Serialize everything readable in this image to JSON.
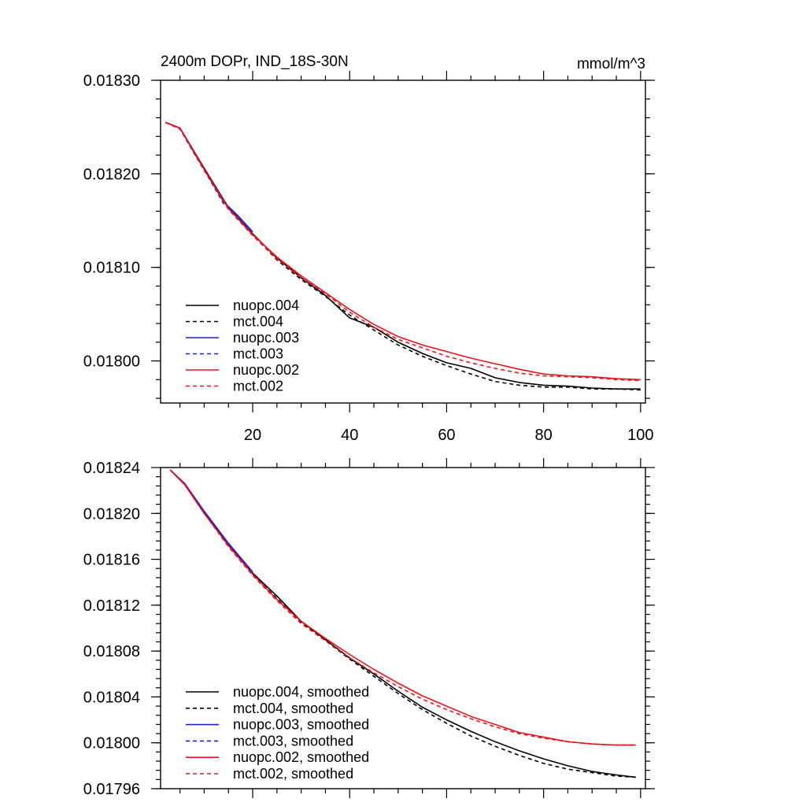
{
  "chart_data": [
    {
      "type": "line",
      "title": "2400m DOPr, IND_18S-30N",
      "units": "mmol/m^3",
      "xlim": [
        1,
        101
      ],
      "ylim": [
        0.017955,
        0.0183
      ],
      "x_ticks": [
        20,
        40,
        60,
        80,
        100
      ],
      "y_ticks": [
        0.018,
        0.0181,
        0.0182,
        0.0183
      ],
      "y_tick_labels": [
        "0.01800",
        "0.01810",
        "0.01820",
        "0.01830"
      ],
      "series": [
        {
          "name": "nuopc.004",
          "color": "#000000",
          "dash": false,
          "x": [
            2,
            5,
            10,
            15,
            20,
            25,
            30,
            35,
            40,
            45,
            50,
            55,
            60,
            65,
            70,
            75,
            80,
            85,
            90,
            95,
            100
          ],
          "y": [
            0.018255,
            0.018249,
            0.018206,
            0.018164,
            0.018136,
            0.01811,
            0.018089,
            0.01807,
            0.018046,
            0.018036,
            0.01802,
            0.018008,
            0.017998,
            0.017992,
            0.017982,
            0.017977,
            0.017974,
            0.017973,
            0.017971,
            0.01797,
            0.01797
          ]
        },
        {
          "name": "mct.004",
          "color": "#000000",
          "dash": true,
          "x": [
            2,
            5,
            10,
            15,
            20,
            25,
            30,
            35,
            40,
            45,
            50,
            55,
            60,
            65,
            70,
            75,
            80,
            85,
            90,
            95,
            100
          ],
          "y": [
            0.018255,
            0.018248,
            0.018205,
            0.018163,
            0.018135,
            0.018108,
            0.018087,
            0.018069,
            0.018049,
            0.018033,
            0.018017,
            0.018005,
            0.017995,
            0.017986,
            0.017978,
            0.017974,
            0.017972,
            0.017972,
            0.01797,
            0.01797,
            0.017969
          ]
        },
        {
          "name": "nuopc.003",
          "color": "#1f1fd6",
          "dash": false,
          "x": [
            2,
            5,
            8,
            11,
            14,
            17,
            20
          ],
          "y": [
            0.018255,
            0.018249,
            0.018222,
            0.018196,
            0.01817,
            0.018155,
            0.018138
          ]
        },
        {
          "name": "mct.003",
          "color": "#1f1fd6",
          "dash": true,
          "x": [
            2,
            5,
            8,
            11,
            14,
            17,
            20
          ],
          "y": [
            0.018255,
            0.018248,
            0.018221,
            0.018195,
            0.018168,
            0.018153,
            0.018136
          ]
        },
        {
          "name": "nuopc.002",
          "color": "#e8141e",
          "dash": false,
          "x": [
            2,
            5,
            10,
            15,
            20,
            25,
            30,
            35,
            40,
            45,
            50,
            55,
            60,
            65,
            70,
            75,
            80,
            85,
            90,
            95,
            100
          ],
          "y": [
            0.018255,
            0.018249,
            0.018205,
            0.018163,
            0.018135,
            0.018111,
            0.018091,
            0.018073,
            0.018055,
            0.018039,
            0.018026,
            0.018017,
            0.01801,
            0.018003,
            0.017997,
            0.017991,
            0.017986,
            0.017984,
            0.017983,
            0.017981,
            0.01798
          ]
        },
        {
          "name": "mct.002",
          "color": "#e8141e",
          "dash": true,
          "x": [
            2,
            5,
            10,
            15,
            20,
            25,
            30,
            35,
            40,
            45,
            50,
            55,
            60,
            65,
            70,
            75,
            80,
            85,
            90,
            95,
            100
          ],
          "y": [
            0.018255,
            0.018248,
            0.018204,
            0.018162,
            0.018134,
            0.018109,
            0.018089,
            0.018072,
            0.018052,
            0.018036,
            0.018023,
            0.018014,
            0.018005,
            0.017998,
            0.017992,
            0.017987,
            0.017984,
            0.017983,
            0.017982,
            0.01798,
            0.017979
          ]
        }
      ]
    },
    {
      "type": "line",
      "title": "",
      "xlim": [
        1,
        101
      ],
      "ylim": [
        0.01796,
        0.01824
      ],
      "y_ticks": [
        0.01796,
        0.018,
        0.01804,
        0.01808,
        0.01812,
        0.01816,
        0.0182,
        0.01824
      ],
      "y_tick_labels": [
        "0.01796",
        "0.01800",
        "0.01804",
        "0.01808",
        "0.01812",
        "0.01816",
        "0.01820",
        "0.01824"
      ],
      "series": [
        {
          "name": "nuopc.004, smoothed",
          "color": "#000000",
          "dash": false,
          "x": [
            3,
            6,
            10,
            15,
            20,
            25,
            30,
            35,
            40,
            45,
            50,
            55,
            60,
            65,
            70,
            75,
            80,
            85,
            90,
            95,
            99
          ],
          "y": [
            0.018238,
            0.018225,
            0.018201,
            0.018173,
            0.018148,
            0.018128,
            0.018106,
            0.01809,
            0.018074,
            0.01806,
            0.018045,
            0.018031,
            0.01802,
            0.01801,
            0.018001,
            0.017993,
            0.017986,
            0.01798,
            0.017975,
            0.017972,
            0.01797
          ]
        },
        {
          "name": "mct.004, smoothed",
          "color": "#000000",
          "dash": true,
          "x": [
            3,
            6,
            10,
            15,
            20,
            25,
            30,
            35,
            40,
            45,
            50,
            55,
            60,
            65,
            70,
            75,
            80,
            85,
            90,
            95,
            99
          ],
          "y": [
            0.018238,
            0.018225,
            0.018201,
            0.018172,
            0.018147,
            0.018126,
            0.018105,
            0.018089,
            0.018073,
            0.018058,
            0.018043,
            0.018029,
            0.018017,
            0.018006,
            0.017997,
            0.017989,
            0.017982,
            0.017977,
            0.017974,
            0.017971,
            0.01797
          ]
        },
        {
          "name": "nuopc.003, smoothed",
          "color": "#1f1fd6",
          "dash": false,
          "x": [
            3,
            6,
            10,
            15,
            20
          ],
          "y": [
            0.018238,
            0.018226,
            0.018202,
            0.018174,
            0.018149
          ]
        },
        {
          "name": "mct.003, smoothed",
          "color": "#1f1fd6",
          "dash": true,
          "x": [
            3,
            6,
            10,
            15,
            20
          ],
          "y": [
            0.018238,
            0.018225,
            0.018201,
            0.018173,
            0.018148
          ]
        },
        {
          "name": "nuopc.002, smoothed",
          "color": "#e8141e",
          "dash": false,
          "x": [
            3,
            6,
            10,
            15,
            20,
            25,
            30,
            35,
            40,
            45,
            50,
            55,
            60,
            65,
            70,
            75,
            80,
            85,
            90,
            95,
            99
          ],
          "y": [
            0.018238,
            0.018225,
            0.0182,
            0.018172,
            0.018147,
            0.018125,
            0.018106,
            0.018091,
            0.018077,
            0.018064,
            0.018052,
            0.018041,
            0.018032,
            0.018023,
            0.018016,
            0.018009,
            0.018005,
            0.018001,
            0.017999,
            0.017998,
            0.017998
          ]
        },
        {
          "name": "mct.002, smoothed",
          "color": "#e8141e",
          "dash": true,
          "x": [
            3,
            6,
            10,
            15,
            20,
            25,
            30,
            35,
            40,
            45,
            50,
            55,
            60,
            65,
            70,
            75,
            80,
            85,
            90,
            95,
            99
          ],
          "y": [
            0.018238,
            0.018225,
            0.0182,
            0.018171,
            0.018146,
            0.018124,
            0.018104,
            0.018089,
            0.018074,
            0.018061,
            0.018049,
            0.018038,
            0.018029,
            0.018021,
            0.018014,
            0.018008,
            0.018004,
            0.018001,
            0.017999,
            0.017998,
            0.017998
          ]
        }
      ]
    }
  ]
}
